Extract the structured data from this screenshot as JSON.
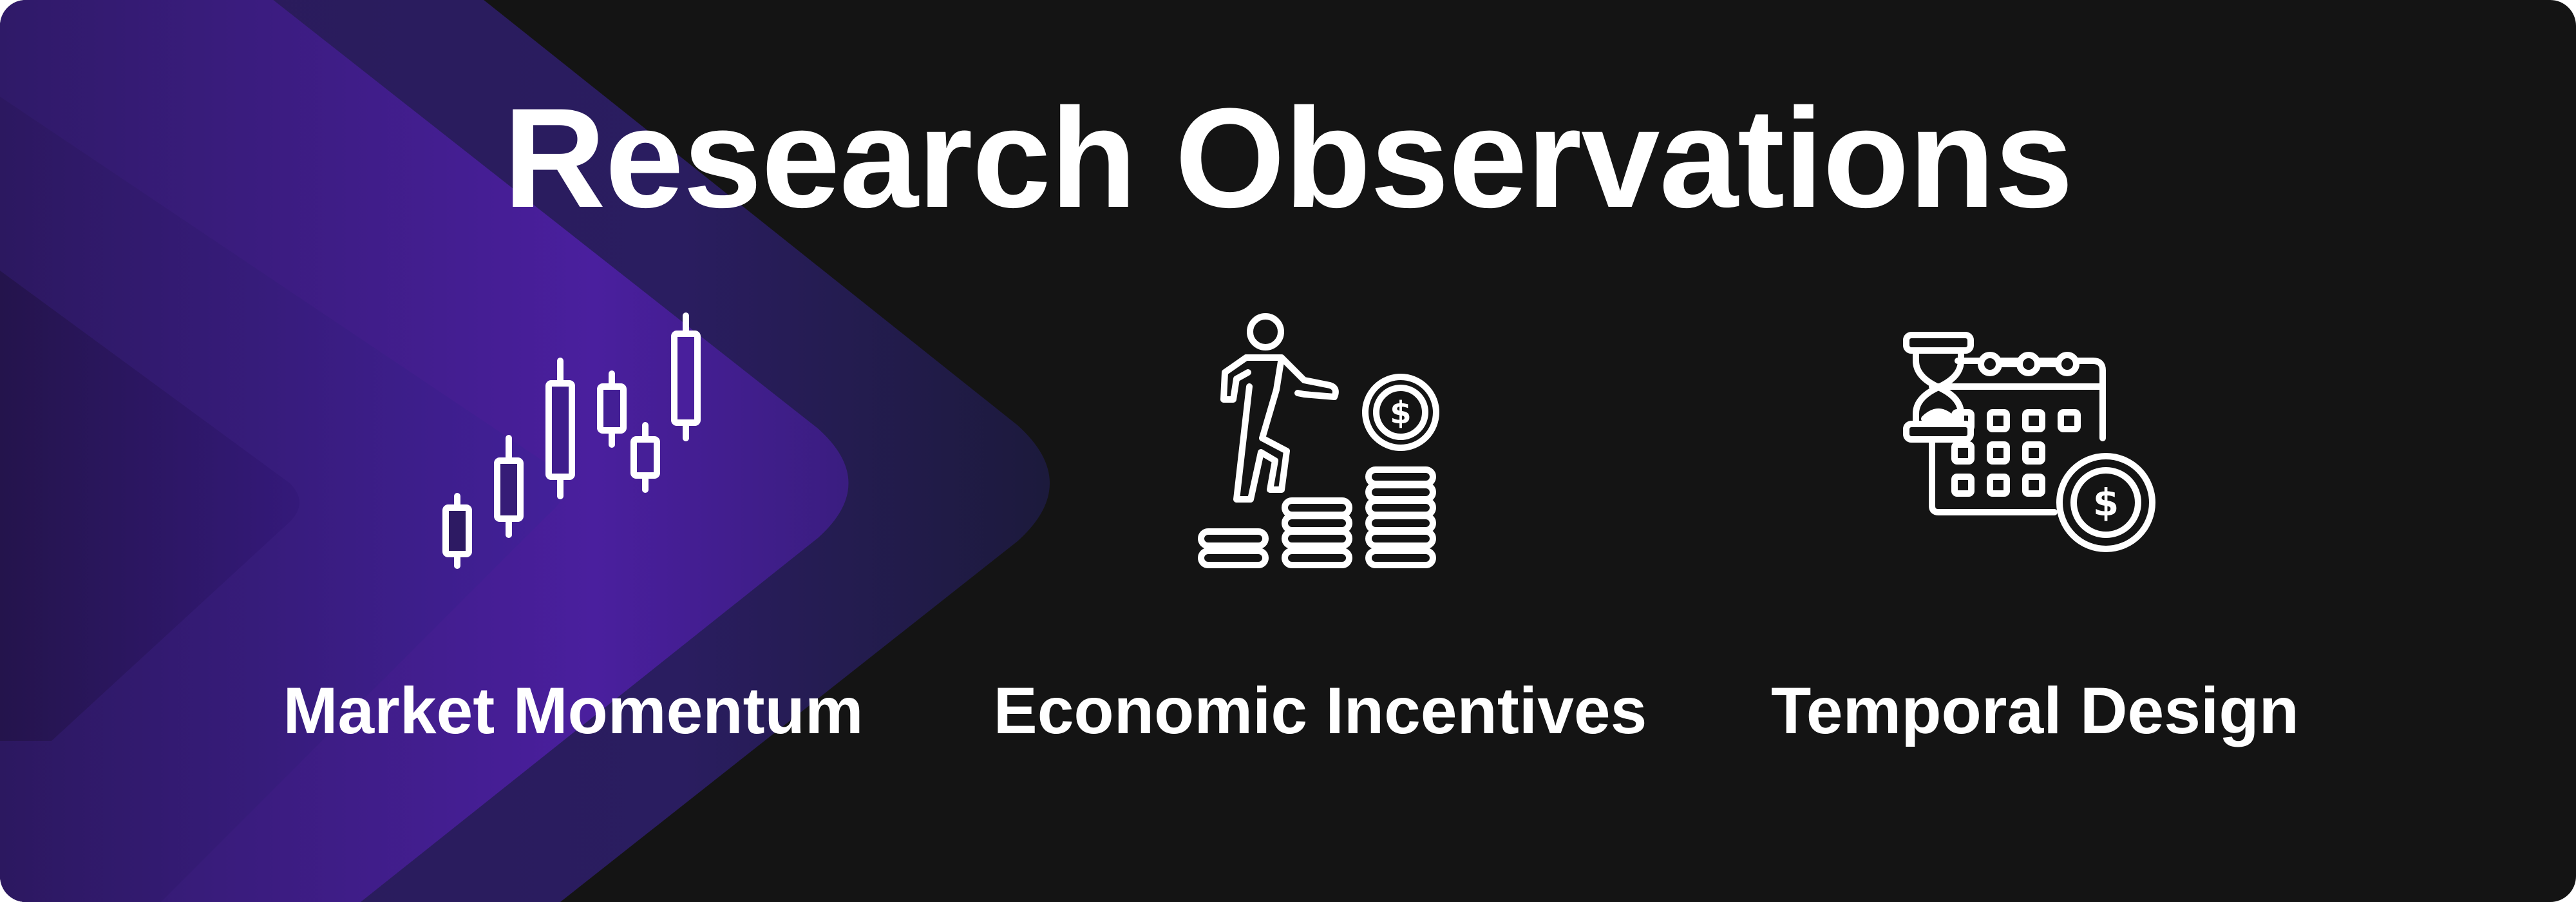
{
  "title": "Research Observations",
  "features": [
    {
      "label": "Market Momentum",
      "icon": "candlestick-chart-icon"
    },
    {
      "label": "Economic Incentives",
      "icon": "climbing-coins-icon"
    },
    {
      "label": "Temporal Design",
      "icon": "calendar-hourglass-coin-icon"
    }
  ],
  "colors": {
    "background": "#141414",
    "accent": "#4a1f9e",
    "text": "#ffffff"
  }
}
